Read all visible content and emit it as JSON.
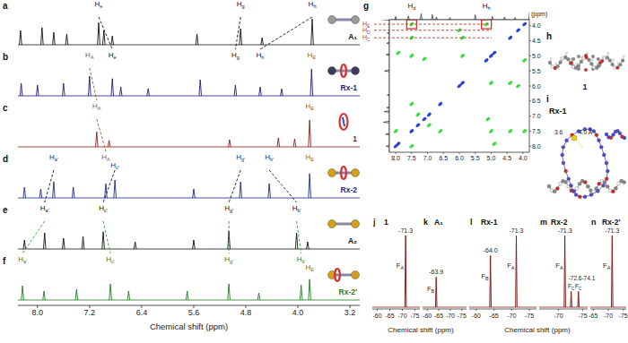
{
  "chart_data": [
    {
      "type": "spectrum",
      "x_label": "Chemical shift (ppm)",
      "xlim": [
        8.3,
        3.05
      ],
      "xticks": [
        {
          "value": 8.0,
          "label": "8.0"
        },
        7.2,
        6.4,
        5.6,
        4.8,
        {
          "value": 4.0,
          "label": "4.0"
        },
        3.2
      ],
      "tick_labels": "x",
      "series": [
        {
          "label": "a",
          "name": "A₁",
          "color": "#111111",
          "x": [
            8.26,
            7.93,
            7.75,
            7.55,
            7.06,
            6.98,
            6.85,
            5.55,
            4.88,
            4.55,
            3.78
          ],
          "values": [
            40,
            48,
            35,
            30,
            62,
            40,
            25,
            30,
            45,
            20,
            72
          ],
          "peak_labels": [
            {
              "text": "He",
              "x": 7.06,
              "color": "#111111"
            },
            {
              "text": "Hg",
              "x": 4.88,
              "color": "#111111"
            },
            {
              "text": "Hh",
              "x": 3.78,
              "color": "#111111"
            }
          ]
        },
        {
          "label": "b",
          "name": "Rx-1",
          "color": "#1c1c7a",
          "x": [
            8.25,
            8.0,
            7.6,
            7.2,
            6.85,
            6.72,
            6.3,
            5.5,
            4.96,
            4.58,
            4.25,
            3.79
          ],
          "values": [
            35,
            30,
            35,
            55,
            48,
            25,
            20,
            45,
            30,
            25,
            20,
            75
          ],
          "peak_labels": [
            {
              "text": "HA",
              "x": 7.2,
              "color": "#a0522d"
            },
            {
              "text": "He",
              "x": 6.85,
              "color": "#111111"
            },
            {
              "text": "Hg",
              "x": 4.96,
              "color": "#111111"
            },
            {
              "text": "Hh",
              "x": 4.58,
              "color": "#111111"
            },
            {
              "text": "HE",
              "x": 3.79,
              "color": "#a0522d"
            }
          ]
        },
        {
          "label": "c",
          "name": "1",
          "color": "#8b1a1a",
          "x": [
            7.09,
            6.9,
            5.05,
            4.3,
            4.05,
            3.82
          ],
          "values": [
            42,
            18,
            20,
            25,
            22,
            75
          ],
          "peak_labels": [
            {
              "text": "HA",
              "x": 7.09,
              "color": "#a0522d"
            },
            {
              "text": "HE",
              "x": 3.82,
              "color": "#a0522d"
            }
          ]
        },
        {
          "label": "d",
          "name": "Rx-2",
          "color": "#1c2a80",
          "x": [
            8.2,
            7.95,
            7.75,
            7.45,
            6.95,
            6.81,
            5.6,
            4.88,
            4.44,
            3.82
          ],
          "values": [
            30,
            25,
            45,
            30,
            40,
            50,
            25,
            45,
            40,
            68
          ],
          "peak_labels": [
            {
              "text": "Ha'",
              "x": 7.75,
              "color": "#1c2a80"
            },
            {
              "text": "HA",
              "x": 6.95,
              "color": "#a0522d"
            },
            {
              "text": "Hc'",
              "x": 6.81,
              "color": "#1c2a80"
            },
            {
              "text": "Hg'",
              "x": 4.88,
              "color": "#1c2a80"
            },
            {
              "text": "Hb'",
              "x": 4.44,
              "color": "#1c2a80"
            },
            {
              "text": "HE",
              "x": 3.82,
              "color": "#a0522d"
            }
          ]
        },
        {
          "label": "e",
          "name": "A₂",
          "color": "#111111",
          "x": [
            8.2,
            7.89,
            7.6,
            7.3,
            6.99,
            6.5,
            5.6,
            5.06,
            4.02,
            3.85
          ],
          "values": [
            25,
            45,
            30,
            35,
            48,
            20,
            25,
            50,
            45,
            20
          ],
          "peak_labels": [
            {
              "text": "Ha'",
              "x": 7.89,
              "color": "#111111"
            },
            {
              "text": "Hc'",
              "x": 6.99,
              "color": "#111111"
            },
            {
              "text": "Hg'",
              "x": 5.06,
              "color": "#111111"
            },
            {
              "text": "Hb'",
              "x": 4.02,
              "color": "#111111"
            }
          ]
        },
        {
          "label": "f",
          "name": "Rx-2'",
          "color": "#1f7a1f",
          "x": [
            8.23,
            7.9,
            7.4,
            6.88,
            6.6,
            5.7,
            5.06,
            4.6,
            3.95,
            3.82
          ],
          "values": [
            40,
            25,
            30,
            45,
            25,
            25,
            45,
            20,
            42,
            58
          ],
          "peak_labels": [
            {
              "text": "Ha'",
              "x": 8.23,
              "color": "#1f7a1f"
            },
            {
              "text": "Hc'",
              "x": 6.88,
              "color": "#1f7a1f"
            },
            {
              "text": "Hg'",
              "x": 5.06,
              "color": "#1f7a1f"
            },
            {
              "text": "Hb'",
              "x": 3.95,
              "color": "#1f7a1f"
            },
            {
              "text": "HE",
              "x": 3.82,
              "color": "#a0522d"
            }
          ]
        }
      ],
      "connectors": [
        {
          "from": {
            "series": "A₁",
            "x": 7.06
          },
          "to": {
            "series": "Rx-1",
            "x": 6.85
          },
          "color": "#111111"
        },
        {
          "from": {
            "series": "A₁",
            "x": 4.88
          },
          "to": {
            "series": "Rx-1",
            "x": 4.96
          },
          "color": "#111111"
        },
        {
          "from": {
            "series": "A₁",
            "x": 3.78
          },
          "to": {
            "series": "Rx-1",
            "x": 4.58
          },
          "color": "#111111"
        },
        {
          "from": {
            "series": "1",
            "x": 7.09
          },
          "to": {
            "series": "Rx-1",
            "x": 7.2
          },
          "color": "#a0522d"
        },
        {
          "from": {
            "series": "1",
            "x": 7.09
          },
          "to": {
            "series": "Rx-2",
            "x": 6.95
          },
          "color": "#a0522d"
        },
        {
          "from": {
            "series": "Rx-2",
            "x": 7.75
          },
          "to": {
            "series": "A₂",
            "x": 7.89
          },
          "color": "#111111"
        },
        {
          "from": {
            "series": "Rx-2",
            "x": 6.81
          },
          "to": {
            "series": "A₂",
            "x": 6.99
          },
          "color": "#111111"
        },
        {
          "from": {
            "series": "Rx-2",
            "x": 4.88
          },
          "to": {
            "series": "A₂",
            "x": 5.06
          },
          "color": "#111111"
        },
        {
          "from": {
            "series": "Rx-2",
            "x": 4.44
          },
          "to": {
            "series": "A₂",
            "x": 4.02
          },
          "color": "#111111"
        },
        {
          "from": {
            "series": "A₂",
            "x": 7.89
          },
          "to": {
            "series": "Rx-2'",
            "x": 8.23
          },
          "color": "#2e9a2e"
        },
        {
          "from": {
            "series": "A₂",
            "x": 6.99
          },
          "to": {
            "series": "Rx-2'",
            "x": 6.88
          },
          "color": "#2e9a2e"
        },
        {
          "from": {
            "series": "A₂",
            "x": 5.06
          },
          "to": {
            "series": "Rx-2'",
            "x": 5.06
          },
          "color": "#2e9a2e"
        },
        {
          "from": {
            "series": "A₂",
            "x": 4.02
          },
          "to": {
            "series": "Rx-2'",
            "x": 3.95
          },
          "color": "#2e9a2e"
        }
      ]
    },
    {
      "type": "scatter",
      "label": "g",
      "y_label": "(ppm)",
      "xlim": [
        8.2,
        3.8
      ],
      "ylim": [
        3.8,
        8.2
      ],
      "xticks": [
        {
          "value": 8.0,
          "label": "8.0"
        },
        7.5,
        {
          "value": 7.0,
          "label": "7.0"
        },
        6.5,
        {
          "value": 6.0,
          "label": "6.0"
        },
        5.5,
        {
          "value": 5.0,
          "label": "5.0"
        },
        4.5,
        {
          "value": 4.0,
          "label": "4.0"
        }
      ],
      "yticks": [
        {
          "value": 4.0,
          "label": "4.0"
        },
        4.5,
        {
          "value": 5.0,
          "label": "5.0"
        },
        5.5,
        {
          "value": 6.0,
          "label": "6.0"
        },
        6.5,
        {
          "value": 7.0,
          "label": "7.0"
        },
        7.5,
        {
          "value": 8.0,
          "label": "8.0"
        }
      ],
      "series": [
        {
          "color": "#3ddc3d",
          "marker": "ellipse",
          "x": [
            7.5,
            5.15,
            7.5,
            7.92,
            7.5,
            7.1,
            6.0,
            5.9,
            4.15,
            4.4,
            7.3,
            6.95,
            5.1,
            5.0,
            4.9,
            4.4,
            3.95,
            3.95,
            6.6,
            7.5,
            8.0,
            7.5,
            5.9,
            5.0
          ],
          "values": [
            3.95,
            3.95,
            4.4,
            4.9,
            5.0,
            5.1,
            4.15,
            4.4,
            6.0,
            5.9,
            6.95,
            7.3,
            7.1,
            7.5,
            7.92,
            7.5,
            7.5,
            5.15,
            7.5,
            6.6,
            7.5,
            8.0,
            5.0,
            5.9
          ]
        },
        {
          "color": "#2a3fd8",
          "marker": "ellipse",
          "x": [
            8.0,
            7.92,
            7.5,
            7.3,
            7.1,
            6.95,
            6.6,
            6.0,
            5.9,
            5.15,
            5.0,
            4.9,
            4.4,
            4.15,
            3.95
          ],
          "values": [
            8.0,
            7.92,
            7.5,
            7.3,
            7.1,
            6.95,
            6.6,
            6.0,
            5.9,
            5.15,
            5.0,
            4.9,
            4.4,
            4.15,
            3.95
          ]
        }
      ],
      "highlights": [
        {
          "x": 7.5,
          "y": 3.95
        },
        {
          "x": 5.15,
          "y": 3.95
        }
      ],
      "peak_labels": [
        {
          "text": "Hd",
          "x": 7.5
        },
        {
          "text": "Hh",
          "x": 5.15
        },
        {
          "text": "HE",
          "y": 3.95,
          "color": "#b0402a"
        },
        {
          "text": "HD",
          "y": 4.15,
          "color": "#b0402a"
        },
        {
          "text": "HC",
          "y": 4.4,
          "color": "#b0402a"
        }
      ]
    },
    {
      "type": "spectrum",
      "label": "j",
      "title": "1",
      "x_label": "Chemical shift (ppm)",
      "xlim": [
        -58,
        -77
      ],
      "xticks": [
        -60,
        -65,
        -70,
        -75
      ],
      "tick_labels": "x",
      "series": [
        {
          "color": "#8b1a1a",
          "x": [
            -71.3
          ],
          "values": [
            100
          ]
        }
      ],
      "annotations": [
        {
          "text": "-71.3",
          "x": -71.3
        }
      ],
      "peak_labels": [
        {
          "text": "FA",
          "x": -71.3
        }
      ]
    },
    {
      "type": "spectrum",
      "label": "k",
      "title": "A₁",
      "xlim": [
        -58,
        -77
      ],
      "xticks": [
        -60,
        -65,
        -70,
        -75
      ],
      "tick_labels": "x",
      "series": [
        {
          "color": "#8b1a1a",
          "x": [
            -63.9
          ],
          "values": [
            42
          ]
        }
      ],
      "annotations": [
        {
          "text": "-63.9",
          "x": -63.9
        }
      ],
      "peak_labels": [
        {
          "text": "FB",
          "x": -63.9
        }
      ]
    },
    {
      "type": "spectrum",
      "label": "l",
      "title": "Rx-1",
      "x_label": "Chemical shift (ppm)",
      "xlim": [
        -58,
        -77
      ],
      "xticks": [
        -60,
        -65,
        -70,
        -75
      ],
      "tick_labels": "x",
      "series": [
        {
          "color": "#8b1a1a",
          "x": [
            -64.0,
            -71.3
          ],
          "values": [
            72,
            100
          ]
        }
      ],
      "annotations": [
        {
          "text": "-64.0",
          "x": -64.0
        },
        {
          "text": "-71.3",
          "x": -71.3
        }
      ],
      "peak_labels": [
        {
          "text": "FB",
          "x": -64.0
        },
        {
          "text": "FA",
          "x": -71.3
        }
      ]
    },
    {
      "type": "spectrum",
      "label": "m",
      "title": "Rx-2",
      "xlim": [
        -66,
        -76
      ],
      "xticks": [
        -70,
        -75
      ],
      "tick_labels": "x",
      "series": [
        {
          "color": "#8b1a1a",
          "x": [
            -71.3,
            -72.6,
            -74.1
          ],
          "values": [
            100,
            22,
            22
          ]
        }
      ],
      "annotations": [
        {
          "text": "-71.3",
          "x": -71.3
        },
        {
          "text": "-72.6-74.1",
          "x": -72.6
        }
      ],
      "peak_labels": [
        {
          "text": "FA",
          "x": -71.3
        },
        {
          "text": "FC",
          "x": -72.6
        },
        {
          "text": "FC",
          "x": -74.1
        }
      ]
    },
    {
      "type": "spectrum",
      "label": "n",
      "title": "Rx-2'",
      "xlim": [
        -64,
        -76
      ],
      "xticks": [
        -65,
        -70,
        -75
      ],
      "tick_labels": "x",
      "series": [
        {
          "color": "#8b1a1a",
          "x": [
            -71.3
          ],
          "values": [
            100
          ]
        }
      ],
      "annotations": [
        {
          "text": "-71.3",
          "x": -71.3
        }
      ],
      "peak_labels": [
        {
          "text": "FA",
          "x": -71.3
        }
      ]
    }
  ],
  "structures": [
    {
      "label": "h",
      "caption": "1"
    },
    {
      "label": "i",
      "caption": "Rx-1",
      "annotations": [
        "3.6",
        "4.0 Å"
      ]
    }
  ]
}
